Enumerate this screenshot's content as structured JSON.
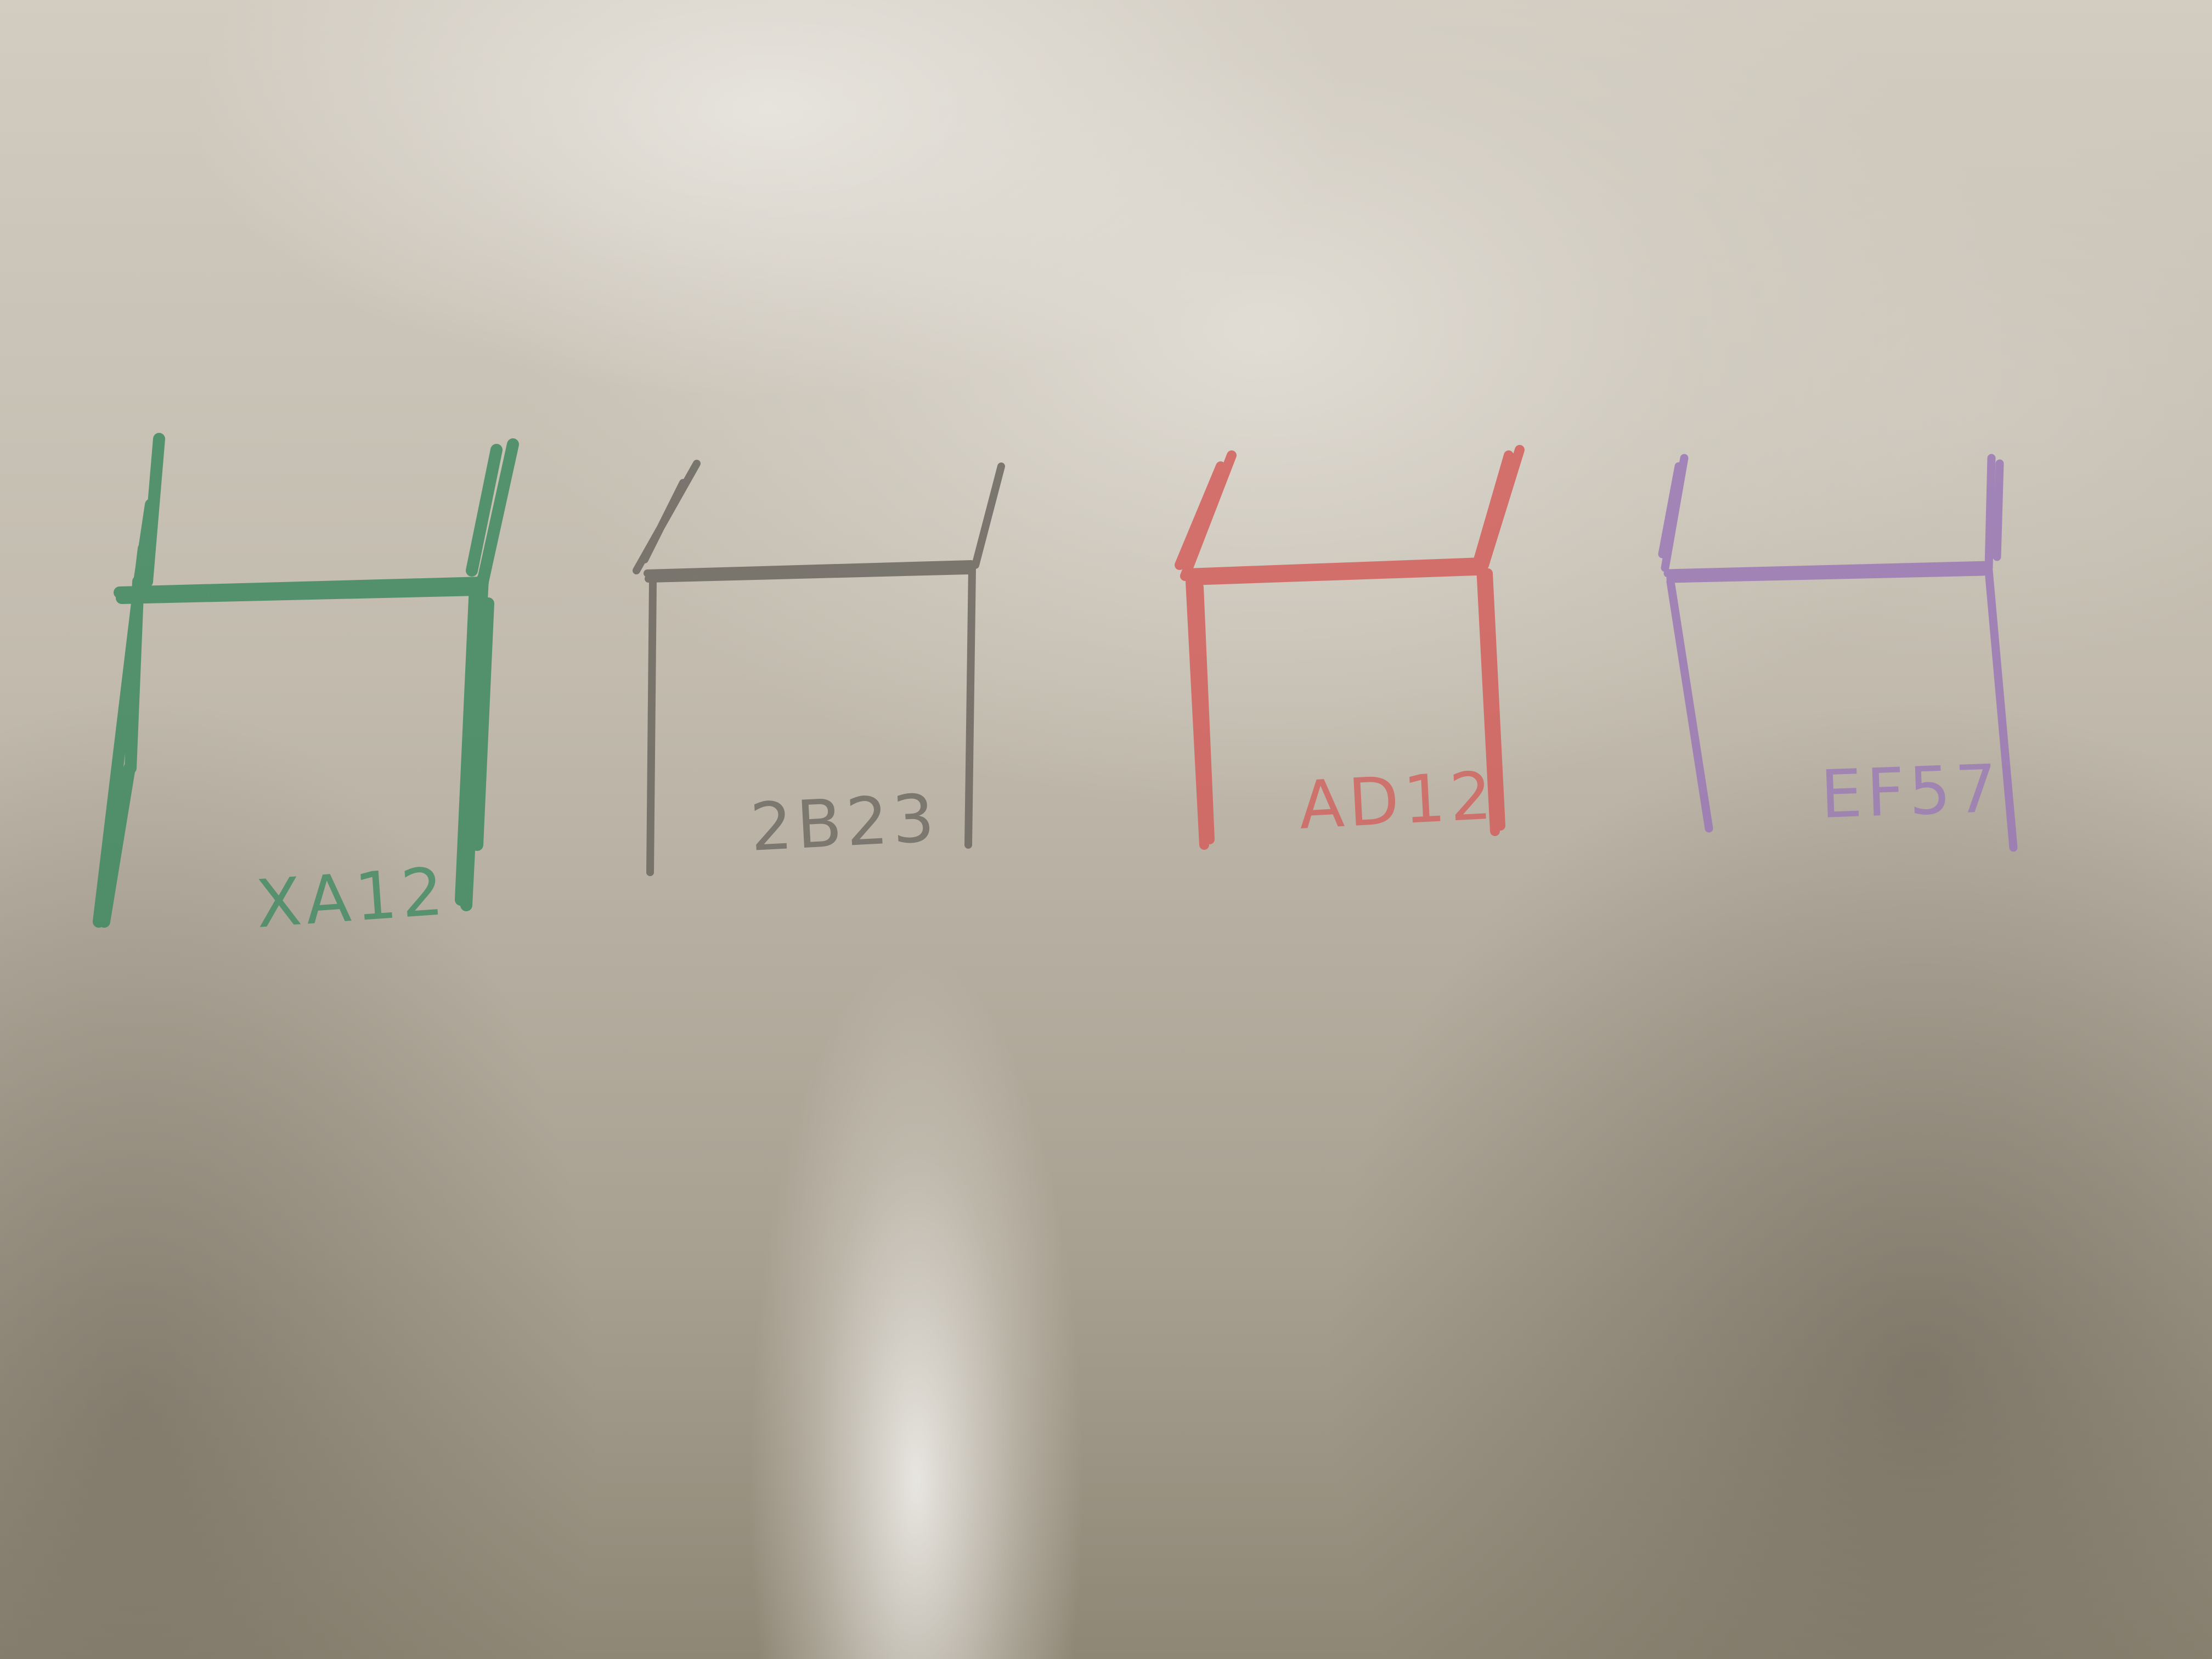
{
  "scene": {
    "description_kind": "photo-of-paper",
    "paper_color": "#c6bfb2"
  },
  "sketches": [
    {
      "label": "XA12",
      "color": "#3f8a62"
    },
    {
      "label": "2B23",
      "color": "#6b6760"
    },
    {
      "label": "AD12",
      "color": "#d35f5c"
    },
    {
      "label": "EF57",
      "color": "#9a78b6"
    }
  ]
}
